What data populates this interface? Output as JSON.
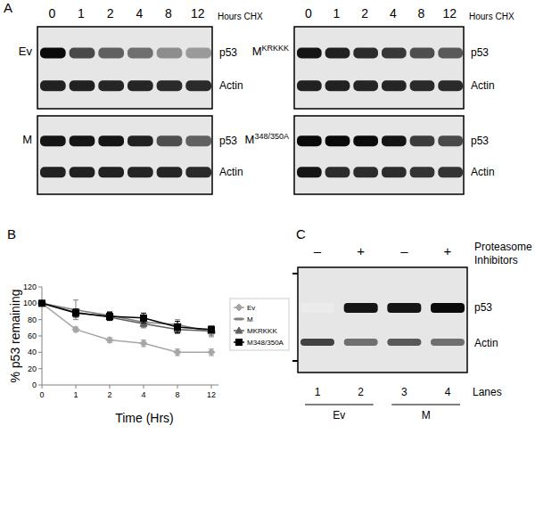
{
  "panel_labels": [
    "A",
    "B",
    "C"
  ],
  "panel_a": {
    "times": [
      "0",
      "1",
      "2",
      "4",
      "8",
      "12"
    ],
    "unit": "Hours CHX",
    "row_labels": [
      "p53",
      "Actin"
    ],
    "blots": [
      {
        "name": "Ev",
        "p53": [
          1.0,
          0.72,
          0.62,
          0.55,
          0.42,
          0.36
        ],
        "actin": [
          0.9,
          0.9,
          0.88,
          0.88,
          0.86,
          0.86
        ]
      },
      {
        "name": "M",
        "p53": [
          0.95,
          0.95,
          0.95,
          0.9,
          0.7,
          0.62
        ],
        "actin": [
          0.9,
          0.9,
          0.9,
          0.88,
          0.88,
          0.86
        ]
      },
      {
        "name": "M",
        "name_sup": "KRKKK",
        "p53": [
          0.95,
          0.9,
          0.85,
          0.8,
          0.7,
          0.65
        ],
        "actin": [
          0.9,
          0.9,
          0.88,
          0.88,
          0.86,
          0.86
        ]
      },
      {
        "name": "M",
        "name_sup": "348/350A",
        "p53": [
          1.0,
          1.0,
          1.0,
          0.95,
          0.78,
          0.72
        ],
        "actin": [
          0.95,
          0.85,
          0.85,
          0.85,
          0.82,
          0.82
        ]
      }
    ]
  },
  "chart_data": {
    "type": "line",
    "categories": [
      "0",
      "1",
      "2",
      "4",
      "8",
      "12"
    ],
    "x_label": "Time (Hrs)",
    "y_label": "% p53 remaining",
    "ylim": [
      0,
      120
    ],
    "yticks": [
      0,
      20,
      40,
      60,
      80,
      100,
      120
    ],
    "grid": false,
    "legend": "right",
    "series": [
      {
        "name": "Ev",
        "color": "#a6a6a6",
        "marker": "diamond",
        "values": [
          100,
          68,
          55,
          51,
          40,
          40
        ],
        "errors": [
          0,
          3,
          3,
          4,
          4,
          4
        ]
      },
      {
        "name": "M",
        "color": "#808080",
        "marker": "dash",
        "values": [
          100,
          92,
          85,
          77,
          74,
          65
        ],
        "errors": [
          0,
          12,
          5,
          5,
          6,
          6
        ]
      },
      {
        "name": "MKRKKK",
        "color": "#606060",
        "marker": "triangle",
        "values": [
          100,
          89,
          83,
          75,
          68,
          66
        ],
        "errors": [
          0,
          4,
          4,
          5,
          5,
          5
        ]
      },
      {
        "name": "M348/350A",
        "color": "#000000",
        "marker": "square",
        "values": [
          100,
          88,
          84,
          82,
          71,
          68
        ],
        "errors": [
          0,
          5,
          5,
          6,
          7,
          4
        ]
      }
    ]
  },
  "panel_c": {
    "signs": [
      "–",
      "+",
      "–",
      "+"
    ],
    "treatment": "Proteasome Inhibitors",
    "row_labels": [
      "p53",
      "Actin"
    ],
    "p53": [
      0.0,
      0.95,
      0.95,
      1.0
    ],
    "actin": [
      0.75,
      0.55,
      0.65,
      0.55
    ],
    "lanes": [
      "1",
      "2",
      "3",
      "4"
    ],
    "lanes_label": "Lanes",
    "groups": [
      "Ev",
      "M"
    ]
  }
}
